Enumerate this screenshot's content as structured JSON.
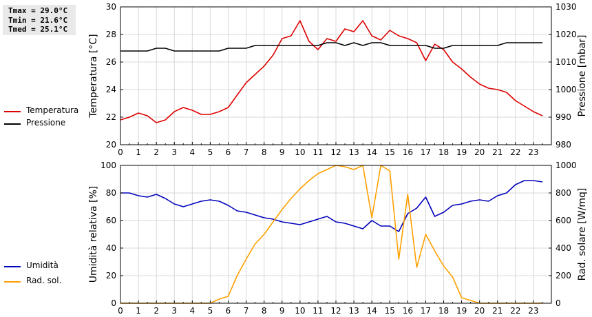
{
  "stats": {
    "tmax": "Tmax = 29.0°C",
    "tmin": "Tmin = 21.6°C",
    "tmed": "Tmed = 25.1°C"
  },
  "legend_top": [
    {
      "label": "Temperatura",
      "color": "#dd0000"
    },
    {
      "label": "Pressione",
      "color": "#000000"
    }
  ],
  "legend_bottom": [
    {
      "label": "Umidità",
      "color": "#0000bb"
    },
    {
      "label": "Rad. sol.",
      "color": "#ffa000"
    }
  ],
  "chart_data": [
    {
      "type": "line",
      "x_ticks": [
        0,
        1,
        2,
        3,
        4,
        5,
        6,
        7,
        8,
        9,
        10,
        11,
        12,
        13,
        14,
        15,
        16,
        17,
        18,
        19,
        20,
        21,
        22,
        23
      ],
      "xlim": [
        0,
        24
      ],
      "ylabel": "Temperatura [°C]",
      "ylim": [
        20,
        30
      ],
      "y_ticks": [
        20,
        22,
        24,
        26,
        28,
        30
      ],
      "y2label": "Pressione [mbar]",
      "y2lim": [
        980,
        1030
      ],
      "y2_ticks": [
        980,
        990,
        1000,
        1010,
        1020,
        1030
      ],
      "grid": true,
      "series": [
        {
          "name": "Temperatura",
          "axis": "left",
          "color": "#dd0000",
          "x": [
            0,
            0.5,
            1,
            1.5,
            2,
            2.5,
            3,
            3.5,
            4,
            4.5,
            5,
            5.5,
            6,
            6.5,
            7,
            7.5,
            8,
            8.5,
            9,
            9.5,
            10,
            10.5,
            11,
            11.5,
            12,
            12.5,
            13,
            13.5,
            14,
            14.5,
            15,
            15.5,
            16,
            16.5,
            17,
            17.5,
            18,
            18.5,
            19,
            19.5,
            20,
            20.5,
            21,
            21.5,
            22,
            22.5,
            23,
            23.5
          ],
          "y": [
            21.8,
            22.0,
            22.3,
            22.1,
            21.6,
            21.8,
            22.4,
            22.7,
            22.5,
            22.2,
            22.2,
            22.4,
            22.7,
            23.6,
            24.5,
            25.1,
            25.7,
            26.5,
            27.7,
            27.9,
            29.0,
            27.5,
            26.9,
            27.7,
            27.5,
            28.4,
            28.2,
            29.0,
            27.9,
            27.6,
            28.3,
            27.9,
            27.7,
            27.4,
            26.1,
            27.3,
            26.9,
            26.0,
            25.5,
            24.9,
            24.4,
            24.1,
            24.0,
            23.8,
            23.2,
            22.8,
            22.4,
            22.1
          ]
        },
        {
          "name": "Pressione",
          "axis": "right",
          "color": "#000000",
          "x": [
            0,
            0.5,
            1,
            1.5,
            2,
            2.5,
            3,
            3.5,
            4,
            4.5,
            5,
            5.5,
            6,
            6.5,
            7,
            7.5,
            8,
            8.5,
            9,
            9.5,
            10,
            10.5,
            11,
            11.5,
            12,
            12.5,
            13,
            13.5,
            14,
            14.5,
            15,
            15.5,
            16,
            16.5,
            17,
            17.5,
            18,
            18.5,
            19,
            19.5,
            20,
            20.5,
            21,
            21.5,
            22,
            22.5,
            23,
            23.5
          ],
          "y": [
            1014,
            1014,
            1014,
            1014,
            1015,
            1015,
            1014,
            1014,
            1014,
            1014,
            1014,
            1014,
            1015,
            1015,
            1015,
            1016,
            1016,
            1016,
            1016,
            1016,
            1016,
            1016,
            1016,
            1017,
            1017,
            1016,
            1017,
            1016,
            1017,
            1017,
            1016,
            1016,
            1016,
            1016,
            1016,
            1015,
            1015,
            1016,
            1016,
            1016,
            1016,
            1016,
            1016,
            1017,
            1017,
            1017,
            1017,
            1017
          ]
        }
      ]
    },
    {
      "type": "line",
      "x_ticks": [
        0,
        1,
        2,
        3,
        4,
        5,
        6,
        7,
        8,
        9,
        10,
        11,
        12,
        13,
        14,
        15,
        16,
        17,
        18,
        19,
        20,
        21,
        22,
        23
      ],
      "xlim": [
        0,
        24
      ],
      "ylabel": "Umidità relativa [%]",
      "ylim": [
        0,
        100
      ],
      "y_ticks": [
        0,
        20,
        40,
        60,
        80,
        100
      ],
      "y2label": "Rad. solare [W/mq]",
      "y2lim": [
        0,
        1000
      ],
      "y2_ticks": [
        0,
        200,
        400,
        600,
        800,
        1000
      ],
      "grid": true,
      "series": [
        {
          "name": "Umidità",
          "axis": "left",
          "color": "#0000bb",
          "x": [
            0,
            0.5,
            1,
            1.5,
            2,
            2.5,
            3,
            3.5,
            4,
            4.5,
            5,
            5.5,
            6,
            6.5,
            7,
            7.5,
            8,
            8.5,
            9,
            9.5,
            10,
            10.5,
            11,
            11.5,
            12,
            12.5,
            13,
            13.5,
            14,
            14.5,
            15,
            15.5,
            16,
            16.5,
            17,
            17.5,
            18,
            18.5,
            19,
            19.5,
            20,
            20.5,
            21,
            21.5,
            22,
            22.5,
            23,
            23.5
          ],
          "y": [
            80,
            80,
            78,
            77,
            79,
            76,
            72,
            70,
            72,
            74,
            75,
            74,
            71,
            67,
            66,
            64,
            62,
            61,
            59,
            58,
            57,
            59,
            61,
            63,
            59,
            58,
            56,
            54,
            60,
            56,
            56,
            52,
            65,
            69,
            77,
            63,
            66,
            71,
            72,
            74,
            75,
            74,
            78,
            80,
            86,
            89,
            89,
            88
          ]
        },
        {
          "name": "Rad. sol.",
          "axis": "right",
          "color": "#ffa000",
          "x": [
            0,
            0.5,
            1,
            1.5,
            2,
            2.5,
            3,
            3.5,
            4,
            4.5,
            5,
            5.5,
            6,
            6.5,
            7,
            7.5,
            8,
            8.5,
            9,
            9.5,
            10,
            10.5,
            11,
            11.5,
            12,
            12.5,
            13,
            13.5,
            14,
            14.5,
            15,
            15.5,
            16,
            16.5,
            17,
            17.5,
            18,
            18.5,
            19,
            19.5,
            20,
            20.5,
            21,
            21.5,
            22,
            22.5,
            23,
            23.5
          ],
          "y": [
            0,
            0,
            0,
            0,
            0,
            0,
            0,
            0,
            0,
            0,
            0,
            30,
            50,
            200,
            320,
            430,
            500,
            590,
            680,
            760,
            830,
            890,
            940,
            970,
            1000,
            990,
            970,
            1000,
            620,
            1000,
            960,
            320,
            790,
            260,
            500,
            380,
            270,
            190,
            40,
            20,
            0,
            0,
            0,
            0,
            0,
            0,
            0,
            0
          ]
        }
      ]
    }
  ]
}
